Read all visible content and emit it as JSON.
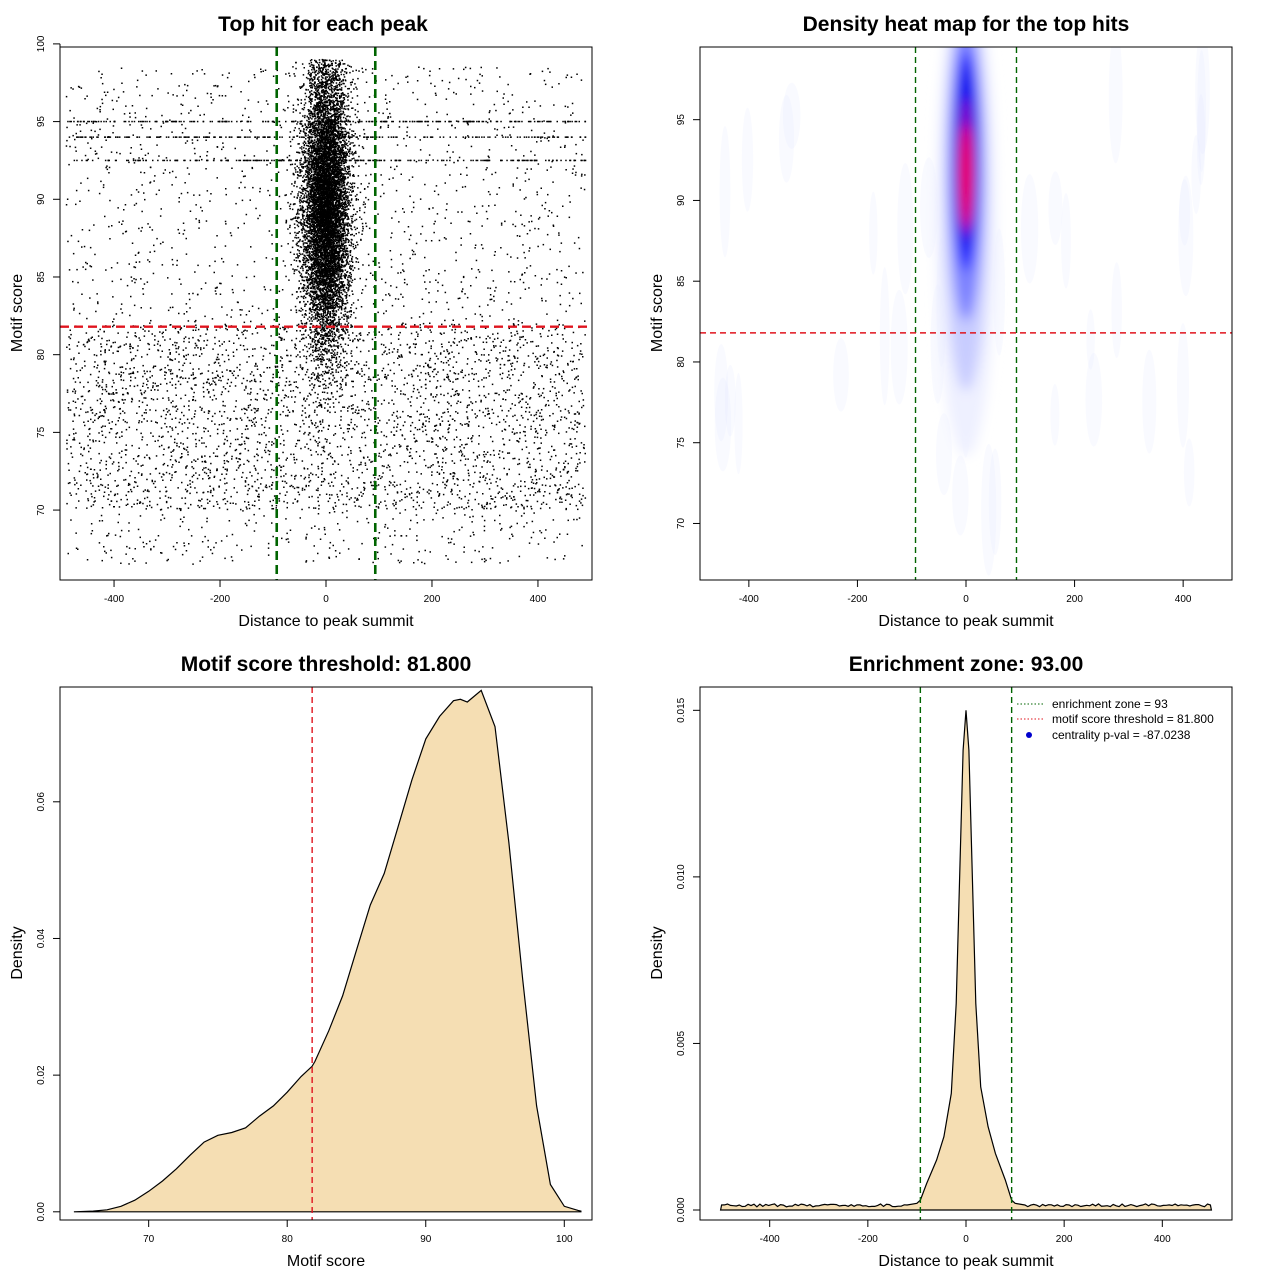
{
  "colors": {
    "zone_line": "#006400",
    "threshold_line": "#e0141e",
    "density_fill": "#f5deb3",
    "centrality_dot": "#0000cd",
    "points": "#000000"
  },
  "chart_data": [
    {
      "id": "scatter",
      "type": "scatter",
      "title": "Top hit for each peak",
      "xlabel": "Distance to peak summit",
      "ylabel": "Motif score",
      "xlim": [
        -502,
        502
      ],
      "ylim": [
        65.5,
        99.8
      ],
      "xticks": [
        -400,
        -200,
        0,
        200,
        400
      ],
      "yticks": [
        70,
        75,
        80,
        85,
        90,
        95,
        100
      ],
      "vlines": [
        -93,
        93
      ],
      "hline": 81.8,
      "background": {
        "x_range": [
          -490,
          490
        ],
        "y_range": [
          66.5,
          98.5
        ],
        "n_points": 5500
      },
      "central_cluster": {
        "x_center": 0,
        "x_sd": 22,
        "y_center": 89.5,
        "y_sd": 4.5,
        "y_range": [
          76,
          99
        ],
        "n_points": 9000
      },
      "repeated_score_rows": [
        94,
        92.5,
        95
      ]
    },
    {
      "id": "heatmap",
      "type": "heatmap",
      "title": "Density heat map for the top hits",
      "xlabel": "Distance to peak summit",
      "ylabel": "Motif score",
      "xlim": [
        -490,
        490
      ],
      "ylim": [
        66.5,
        99.5
      ],
      "xticks": [
        -400,
        -200,
        0,
        200,
        400
      ],
      "yticks": [
        70,
        75,
        80,
        85,
        90,
        95
      ],
      "vlines": [
        -93,
        93
      ],
      "hline": 81.8,
      "density_peak": {
        "x": 0,
        "y": 91.5
      },
      "color_scale": [
        "white",
        "blue",
        "red"
      ]
    },
    {
      "id": "score-density",
      "type": "area",
      "title": "Motif score threshold: 81.800",
      "xlabel": "Motif score",
      "ylabel": "Density",
      "xlim": [
        63.6,
        102.0
      ],
      "ylim": [
        -0.0012,
        0.0768
      ],
      "xticks": [
        70,
        80,
        90,
        100
      ],
      "yticks": [
        0.0,
        0.02,
        0.04,
        0.06
      ],
      "ytick_labels": [
        "0.00",
        "0.02",
        "0.04",
        "0.06"
      ],
      "vline": 81.8,
      "x": [
        64.6,
        66,
        67,
        68,
        69,
        70,
        71,
        72,
        73,
        74,
        75,
        76,
        77,
        78,
        79,
        80,
        81,
        81.8,
        82,
        83,
        84,
        85,
        86,
        87,
        88,
        89,
        90,
        91,
        92,
        92.5,
        93,
        94,
        95,
        96,
        97,
        98,
        99,
        100,
        101,
        101.2
      ],
      "y": [
        0.0,
        0.0001,
        0.0003,
        0.0008,
        0.0017,
        0.003,
        0.0045,
        0.0063,
        0.0083,
        0.0102,
        0.0112,
        0.0116,
        0.0123,
        0.014,
        0.0155,
        0.0175,
        0.0198,
        0.0213,
        0.022,
        0.0265,
        0.0316,
        0.0383,
        0.0449,
        0.0495,
        0.0563,
        0.0632,
        0.0692,
        0.0725,
        0.0748,
        0.075,
        0.0746,
        0.0763,
        0.071,
        0.054,
        0.034,
        0.0155,
        0.004,
        0.0008,
        0.0002,
        0.0001
      ]
    },
    {
      "id": "distance-density",
      "type": "area",
      "title": "Enrichment zone: 93.00",
      "xlabel": "Distance to peak summit",
      "ylabel": "Density",
      "xlim": [
        -542,
        542
      ],
      "ylim": [
        -0.0003,
        0.0157
      ],
      "xticks": [
        -400,
        -200,
        0,
        200,
        400
      ],
      "yticks": [
        0.0,
        0.005,
        0.01,
        0.015
      ],
      "ytick_labels": [
        "0.000",
        "0.005",
        "0.010",
        "0.015"
      ],
      "vlines": [
        -93,
        93
      ],
      "baseline_level": 0.00014,
      "x": [
        -500,
        -498,
        -120,
        -100,
        -93,
        -80,
        -60,
        -45,
        -30,
        -20,
        -12,
        -6,
        0,
        6,
        12,
        20,
        30,
        45,
        60,
        80,
        93,
        100,
        120,
        498,
        500
      ],
      "y": [
        0.0,
        0.00015,
        0.00015,
        0.0002,
        0.0003,
        0.0008,
        0.0015,
        0.0022,
        0.0035,
        0.0062,
        0.0105,
        0.0138,
        0.015,
        0.0138,
        0.0105,
        0.0062,
        0.0037,
        0.0025,
        0.0017,
        0.0009,
        0.0003,
        0.0002,
        0.00015,
        0.00015,
        0.0
      ],
      "legend": {
        "position": "top-right",
        "entries": [
          {
            "label": "enrichment zone = 93",
            "style": "dotted-line",
            "color": "#006400"
          },
          {
            "label": "motif score threshold = 81.800",
            "style": "dotted-line",
            "color": "#e0141e"
          },
          {
            "label": "centrality p-val = -87.0238",
            "style": "point",
            "color": "#0000cd"
          }
        ]
      }
    }
  ]
}
